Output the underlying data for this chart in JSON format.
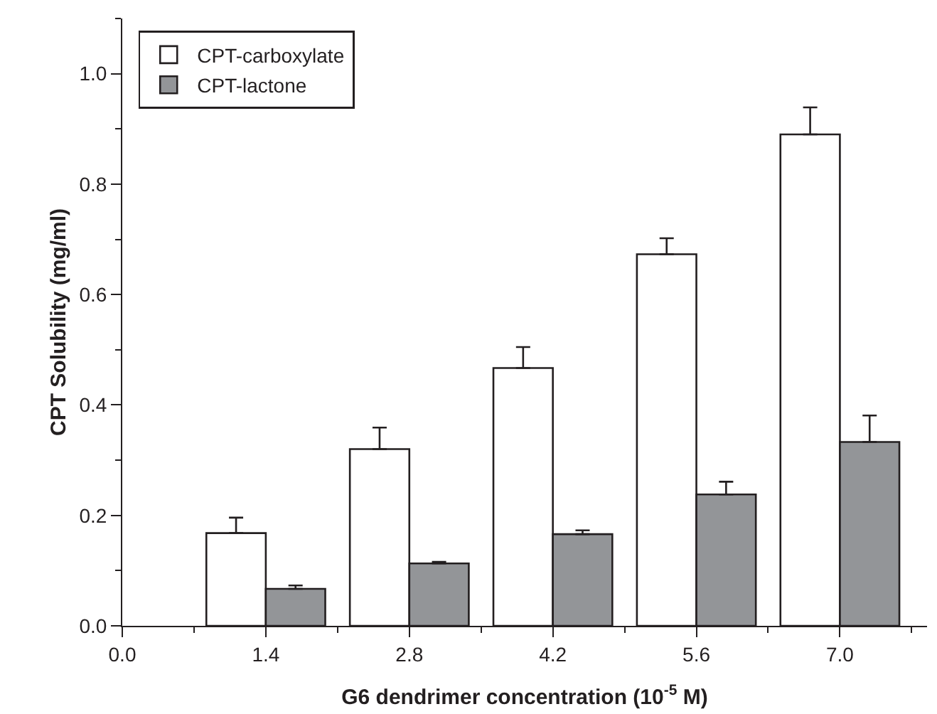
{
  "chart_data": {
    "type": "bar",
    "xlabel": "G6 dendrimer concentration (10$^{-5}$ M)",
    "ylabel": "CPT Solubility (mg/ml)",
    "x": [
      1.4,
      2.8,
      4.2,
      5.6,
      7.0
    ],
    "series": [
      {
        "name": "CPT-carboxylate",
        "color": "#ffffff",
        "values": [
          0.168,
          0.32,
          0.467,
          0.673,
          0.89
        ],
        "errors": [
          [
            0.168,
            0.196
          ],
          [
            0.32,
            0.359
          ],
          [
            0.467,
            0.505
          ],
          [
            0.673,
            0.702
          ],
          [
            0.89,
            0.939
          ]
        ]
      },
      {
        "name": "CPT-lactone",
        "color": "#939598",
        "values": [
          0.067,
          0.113,
          0.166,
          0.238,
          0.333
        ],
        "errors": [
          [
            0.067,
            0.073
          ],
          [
            0.113,
            0.116
          ],
          [
            0.166,
            0.173
          ],
          [
            0.238,
            0.261
          ],
          [
            0.333,
            0.381
          ]
        ]
      }
    ],
    "xlim": [
      0,
      7.85
    ],
    "xticks": [
      {
        "value": 0,
        "label": "0.0"
      },
      1.4,
      2.8,
      4.2,
      5.6,
      {
        "value": 7,
        "label": "7.0"
      }
    ],
    "ylim": [
      0,
      1.1
    ],
    "yticks": [
      {
        "value": 0,
        "label": "0.0"
      },
      0.2,
      0.4,
      0.6,
      0.8,
      {
        "value": 1,
        "label": "1.0"
      }
    ],
    "grid": false,
    "legend": "top left"
  }
}
